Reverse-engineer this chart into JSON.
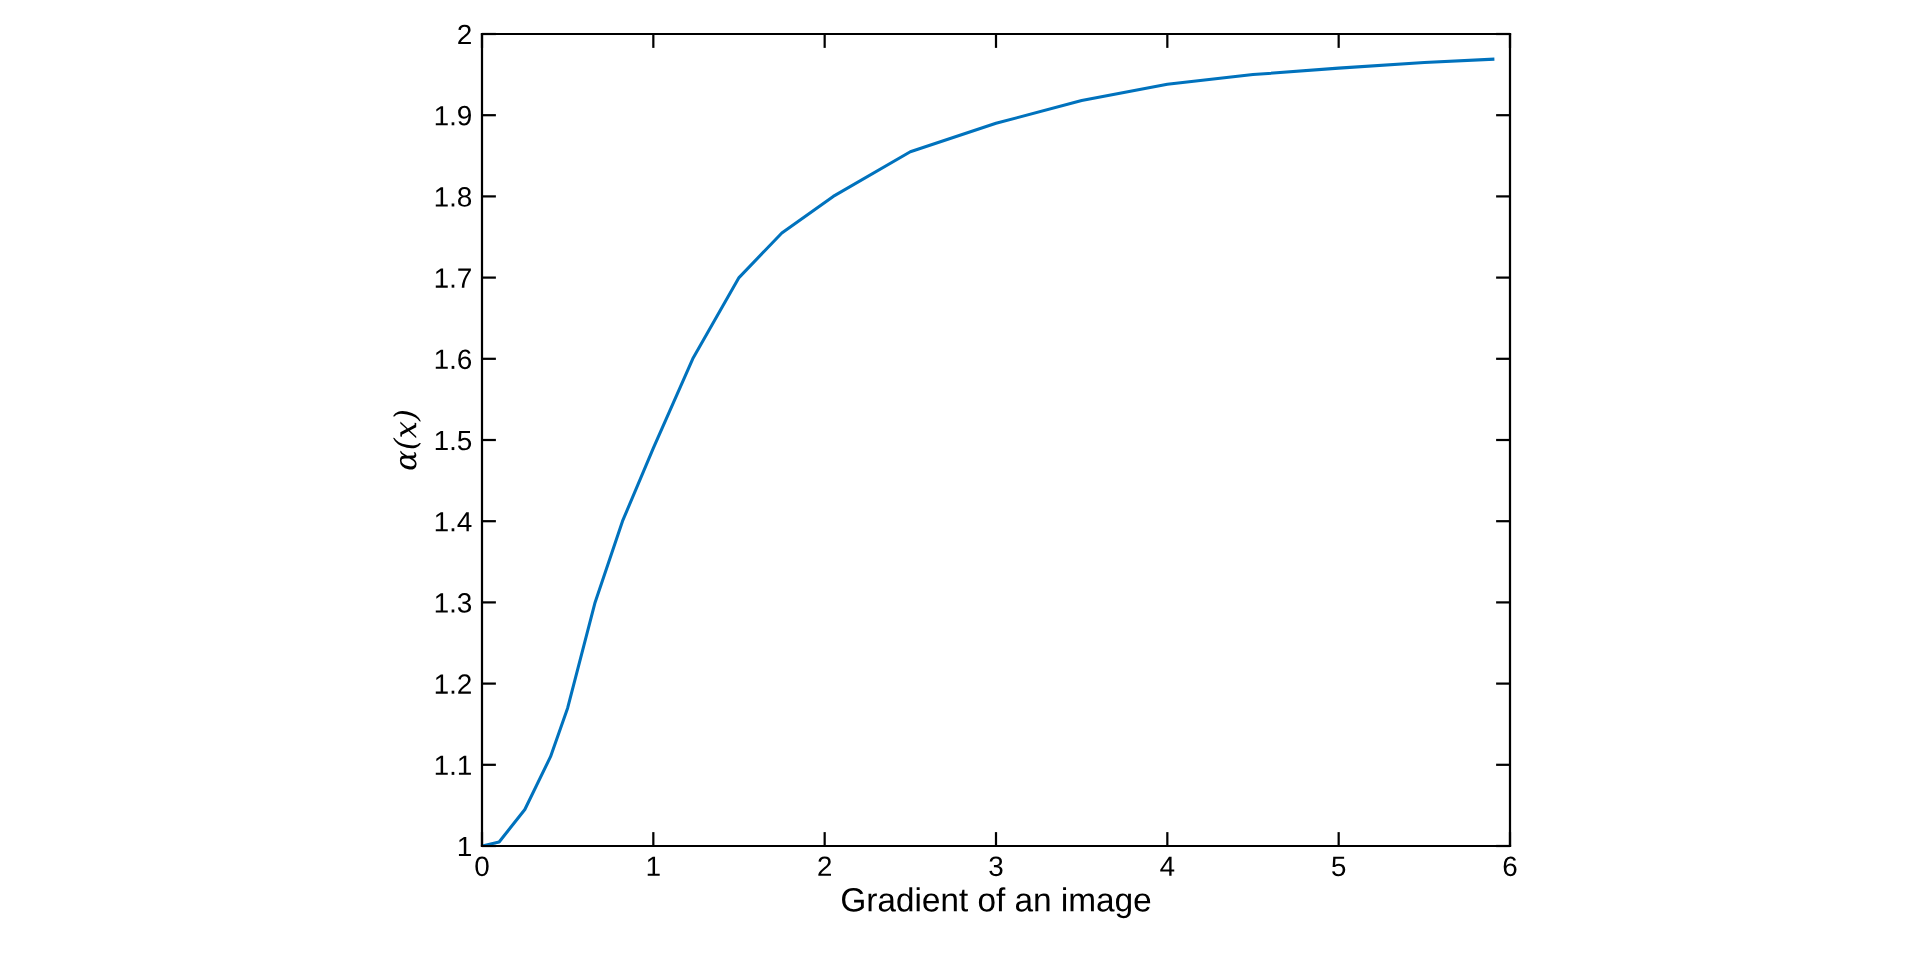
{
  "chart_data": {
    "type": "line",
    "xlabel": "Gradient of an image",
    "ylabel": "α(x)",
    "x": [
      0,
      0.1,
      0.25,
      0.4,
      0.5,
      0.66,
      0.82,
      1.0,
      1.23,
      1.5,
      1.75,
      2.05,
      2.5,
      3.0,
      3.5,
      4,
      4.5,
      5,
      5.5,
      5.9
    ],
    "series": [
      {
        "color": "#0072bd",
        "values": [
          1,
          1.005,
          1.045,
          1.11,
          1.17,
          1.3,
          1.4,
          1.49,
          1.6,
          1.7,
          1.755,
          1.8,
          1.855,
          1.89,
          1.918,
          1.938,
          1.95,
          1.958,
          1.965,
          1.969
        ]
      }
    ],
    "xlim": [
      0,
      6
    ],
    "xticks": [
      0,
      1,
      2,
      3,
      4,
      5,
      6
    ],
    "ylim": [
      1,
      2
    ],
    "yticks": [
      1,
      1.1,
      1.2,
      1.3,
      1.4,
      1.5,
      1.6,
      1.7,
      1.8,
      1.9,
      2
    ],
    "grid": false,
    "legend": false,
    "marker": "none",
    "line_style": "solid"
  }
}
